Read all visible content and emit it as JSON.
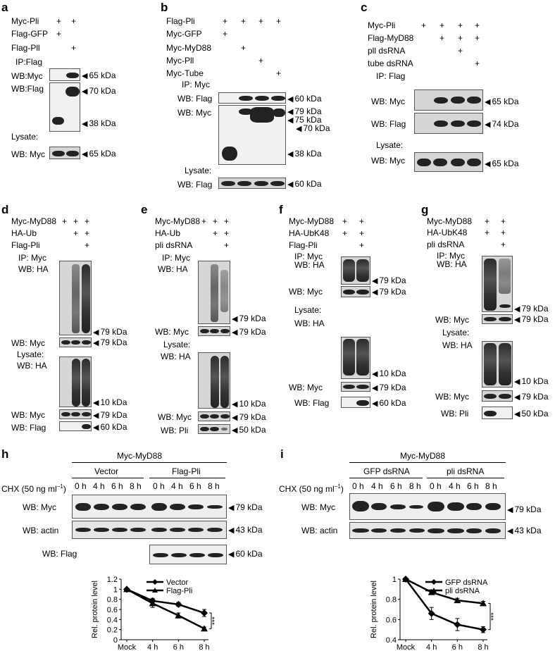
{
  "panels": {
    "a": {
      "letter": "a",
      "rows": [
        "Myc-Pli",
        "Flag-GFP",
        "Flag-Pll"
      ],
      "plus": {
        "r0": [
          "+",
          "+"
        ],
        "r1": [
          "+"
        ],
        "r2": [
          "+"
        ]
      },
      "ip": "IP:Flag",
      "wb1": "WB:Myc",
      "wb2": "WB:Flag",
      "lys": "Lysate:",
      "wb3": "WB: Myc",
      "m1": "65 kDa",
      "m2": "70 kDa",
      "m3": "38 kDa",
      "m4": "65 kDa"
    },
    "b": {
      "letter": "b",
      "rows": [
        "Flag-Pli",
        "Myc-GFP",
        "Myc-MyD88",
        "Myc-Pll",
        "Myc-Tube"
      ],
      "plus": [
        "+",
        "+",
        "+",
        "+",
        "+",
        "+",
        "+",
        "+"
      ],
      "ip": "IP: Myc",
      "wb1": "WB: Flag",
      "wb2": "WB: Myc",
      "lys": "Lysate:",
      "wb3": "WB: Flag",
      "m1": "60 kDa",
      "m2": "79 kDa",
      "m3": "75 kDa",
      "m4": "70 kDa",
      "m5": "38 kDa",
      "m6": "60 kDa"
    },
    "c": {
      "letter": "c",
      "rows": [
        "Myc-Pli",
        "Flag-MyD88",
        "pll dsRNA",
        "tube dsRNA"
      ],
      "plus": [
        "+",
        "+",
        "+",
        "+",
        "+",
        "+",
        "+",
        "+",
        "+"
      ],
      "ip": "IP: Flag",
      "wb1": "WB: Myc",
      "wb2": "WB: Flag",
      "lys": "Lysate:",
      "wb3": "WB: Myc",
      "m1": "65 kDa",
      "m2": "74 kDa",
      "m3": "65 kDa"
    },
    "d": {
      "letter": "d",
      "rows": [
        "Myc-MyD88",
        "HA-Ub",
        "Flag-Pli"
      ],
      "plus": [
        "+",
        "+",
        "+",
        "+",
        "+",
        "+"
      ],
      "ip": "IP: Myc",
      "wb1": "WB: HA",
      "wb2": "WB: Myc",
      "lys": "Lysate:",
      "wb3": "WB: HA",
      "wb4": "WB: Myc",
      "wb5": "WB: Flag",
      "m1": "79 kDa",
      "m2": "79 kDa",
      "m3": "10 kDa",
      "m4": "79 kDa",
      "m5": "60 kDa"
    },
    "e": {
      "letter": "e",
      "rows": [
        "Myc-MyD88",
        "HA-Ub",
        "pli dsRNA"
      ],
      "plus": [
        "+",
        "+",
        "+",
        "+",
        "+",
        "+"
      ],
      "ip": "IP: Myc",
      "wb1": "WB: HA",
      "wb2": "WB: Myc",
      "lys": "Lysate:",
      "wb3": "WB: HA",
      "wb4": "WB: Myc",
      "wb5": "WB: Pli",
      "m1": "79 kDa",
      "m2": "79 kDa",
      "m3": "10 kDa",
      "m4": "79 kDa",
      "m5": "50 kDa"
    },
    "f": {
      "letter": "f",
      "rows": [
        "Myc-MyD88",
        "HA-UbK48",
        "Flag-Pli"
      ],
      "plus": [
        "+",
        "+",
        "+",
        "+",
        "+"
      ],
      "ip": "IP: Myc",
      "wbha": "WB: HA",
      "wb2": "WB: Myc",
      "lys": "Lysate:",
      "wb3": "WB: HA",
      "wb4": "WB: Myc",
      "wb5": "WB: Flag",
      "m1": "79 kDa",
      "m2": "79 kDa",
      "m3": "10 kDa",
      "m4": "79 kDa",
      "m5": "60 kDa"
    },
    "g": {
      "letter": "g",
      "rows": [
        "Myc-MyD88",
        "HA-UbK48",
        "pli dsRNA"
      ],
      "plus": [
        "+",
        "+",
        "+",
        "+",
        "+"
      ],
      "ip": "IP: Myc",
      "wbha": "WB: HA",
      "wb2": "WB: Myc",
      "lys": "Lysate:",
      "wb3": "WB: HA",
      "wb4": "WB: Myc",
      "wb5": "WB: Pli",
      "m1": "79  kDa",
      "m2": "79 kDa",
      "m3": "10 kDa",
      "m4": "79 kDa",
      "m5": "50 kDa"
    },
    "h": {
      "letter": "h",
      "header": "Myc-MyD88",
      "g1": "Vector",
      "g2": "Flag-Pli",
      "chx": "CHX (50 ng ml",
      "sup": "−1",
      "close": ")",
      "times": [
        "0 h",
        "4 h",
        "6 h",
        "8 h",
        "0 h",
        "4 h",
        "6 h",
        "8 h"
      ],
      "wb1": "WB: Myc",
      "wb2": "WB: actin",
      "wb3": "WB: Flag",
      "m1": "79 kDa",
      "m2": "43 kDa",
      "m3": "60 kDa"
    },
    "i": {
      "letter": "i",
      "header": "Myc-MyD88",
      "g1": "GFP dsRNA",
      "g2": "pli dsRNA",
      "chx": "CHX (50 ng ml",
      "sup": "−1",
      "close": ")",
      "times": [
        "0 h",
        "4 h",
        "6 h",
        "8 h",
        "0 h",
        "4 h",
        "6 h",
        "8 h"
      ],
      "wb1": "WB: Myc",
      "wb2": "WB: actin",
      "m1": "79 kDa",
      "m2": "43 kDa"
    }
  },
  "chart_data": [
    {
      "type": "line",
      "panel": "h",
      "ylabel": "Rel. protein level",
      "categories": [
        "Mock",
        "4 h",
        "6 h",
        "8 h"
      ],
      "ylim": [
        0,
        1.2
      ],
      "yticks": [
        "0",
        "0.2",
        "0.4",
        "0.6",
        "0.8",
        "1",
        "1.2"
      ],
      "series": [
        {
          "name": "Vector",
          "marker": "diamond",
          "values": [
            1,
            0.77,
            0.7,
            0.53
          ],
          "err": [
            0,
            0.05,
            0.04,
            0.07
          ]
        },
        {
          "name": "Flag-Pli",
          "marker": "triangle",
          "values": [
            1,
            0.72,
            0.48,
            0.22
          ],
          "err": [
            0,
            0.08,
            0.05,
            0.03
          ]
        }
      ],
      "annotation": "***",
      "legend": "top-right"
    },
    {
      "type": "line",
      "panel": "i",
      "ylabel": "Rel. protein level",
      "categories": [
        "Mock",
        "4 h",
        "6 h",
        "8 h"
      ],
      "ylim": [
        0.4,
        1
      ],
      "yticks": [
        "0.4",
        "0.6",
        "0.8",
        "1"
      ],
      "series": [
        {
          "name": "GFP dsRNA",
          "marker": "diamond",
          "values": [
            1,
            0.66,
            0.55,
            0.5
          ],
          "err": [
            0,
            0.06,
            0.06,
            0.03
          ]
        },
        {
          "name": "pli dsRNA",
          "marker": "triangle",
          "values": [
            1,
            0.87,
            0.79,
            0.76
          ],
          "err": [
            0,
            0.02,
            0.02,
            0.02
          ]
        }
      ],
      "annotation": "***",
      "legend": "top-right"
    }
  ]
}
